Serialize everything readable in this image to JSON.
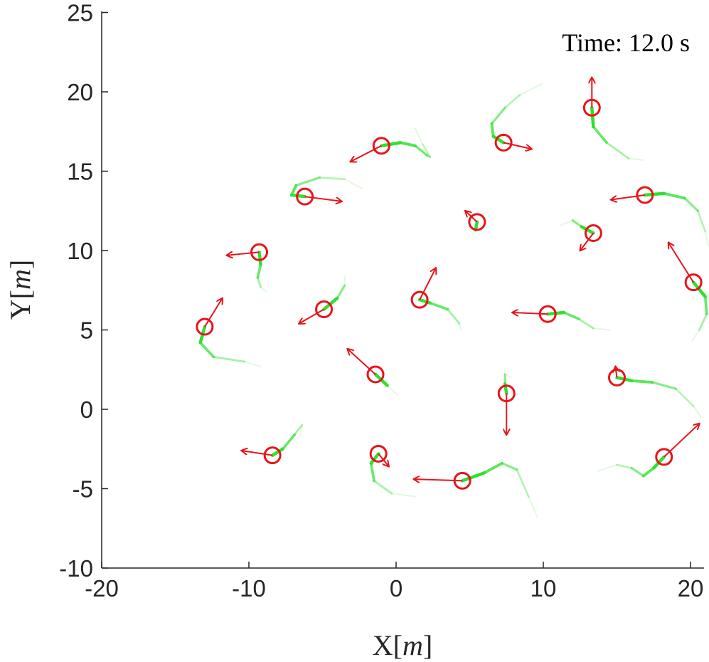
{
  "chart_data": {
    "type": "scatter",
    "title": "",
    "annotation": "Time:  12.0 s",
    "xlabel_main": "X",
    "xlabel_unit": "m",
    "ylabel_main": "Y",
    "ylabel_unit": "m",
    "xlim": [
      -20,
      21
    ],
    "ylim": [
      -10,
      25
    ],
    "xticks": [
      "-20",
      "-10",
      "0",
      "10",
      "20"
    ],
    "yticks": [
      "-10",
      "-5",
      "0",
      "5",
      "10",
      "15",
      "20",
      "25"
    ],
    "grid": false,
    "colors": {
      "agent": "#e8141a",
      "trail": "#2fe02f",
      "axis": "#262626"
    },
    "agents": [
      {
        "pos": [
          13.3,
          19.0
        ],
        "heading": [
          13.3,
          20.9
        ],
        "trail": [
          [
            13.3,
            19.0
          ],
          [
            13.4,
            17.8
          ],
          [
            14.3,
            16.8
          ],
          [
            15.8,
            15.8
          ],
          [
            16.8,
            15.7
          ]
        ]
      },
      {
        "pos": [
          7.3,
          16.8
        ],
        "heading": [
          9.2,
          16.4
        ],
        "trail": [
          [
            7.3,
            16.8
          ],
          [
            6.6,
            17.2
          ],
          [
            6.5,
            18.0
          ],
          [
            7.4,
            19.0
          ],
          [
            8.4,
            19.8
          ],
          [
            9.9,
            20.5
          ]
        ]
      },
      {
        "pos": [
          -1.0,
          16.6
        ],
        "heading": [
          -3.1,
          15.6
        ],
        "trail": [
          [
            -1.0,
            16.6
          ],
          [
            0.3,
            16.8
          ],
          [
            1.3,
            16.6
          ],
          [
            2.1,
            16.0
          ],
          [
            2.3,
            15.9
          ],
          [
            1.8,
            16.7
          ],
          [
            1.3,
            17.7
          ]
        ]
      },
      {
        "pos": [
          -6.2,
          13.4
        ],
        "heading": [
          -3.7,
          13.1
        ],
        "trail": [
          [
            -6.2,
            13.4
          ],
          [
            -7.1,
            13.5
          ],
          [
            -6.8,
            14.1
          ],
          [
            -5.2,
            14.6
          ],
          [
            -3.5,
            14.5
          ],
          [
            -2.3,
            13.9
          ]
        ]
      },
      {
        "pos": [
          16.9,
          13.5
        ],
        "heading": [
          14.6,
          13.2
        ],
        "trail": [
          [
            16.9,
            13.5
          ],
          [
            18.2,
            13.6
          ],
          [
            19.6,
            13.3
          ],
          [
            20.5,
            12.5
          ],
          [
            21.0,
            11.2
          ],
          [
            21.2,
            10.3
          ]
        ]
      },
      {
        "pos": [
          5.5,
          11.8
        ],
        "heading": [
          4.7,
          12.5
        ],
        "trail": [
          [
            5.5,
            11.8
          ],
          [
            5.4,
            11.3
          ],
          [
            5.2,
            11.0
          ]
        ]
      },
      {
        "pos": [
          13.4,
          11.1
        ],
        "heading": [
          12.5,
          10.0
        ],
        "trail": [
          [
            13.4,
            11.1
          ],
          [
            12.6,
            11.5
          ],
          [
            12.0,
            11.9
          ],
          [
            11.2,
            11.6
          ]
        ]
      },
      {
        "pos": [
          -9.3,
          9.9
        ],
        "heading": [
          -11.5,
          9.7
        ],
        "trail": [
          [
            -9.3,
            9.9
          ],
          [
            -9.2,
            9.1
          ],
          [
            -9.4,
            8.3
          ],
          [
            -9.2,
            7.7
          ],
          [
            -8.8,
            7.4
          ]
        ]
      },
      {
        "pos": [
          20.2,
          8.0
        ],
        "heading": [
          18.5,
          10.5
        ],
        "trail": [
          [
            20.2,
            8.0
          ],
          [
            21.0,
            7.1
          ],
          [
            21.1,
            6.0
          ],
          [
            20.6,
            5.0
          ],
          [
            20.1,
            4.3
          ]
        ]
      },
      {
        "pos": [
          -4.9,
          6.3
        ],
        "heading": [
          -6.6,
          5.4
        ],
        "trail": [
          [
            -4.9,
            6.3
          ],
          [
            -4.0,
            7.0
          ],
          [
            -3.5,
            7.8
          ],
          [
            -3.5,
            8.4
          ]
        ]
      },
      {
        "pos": [
          1.6,
          6.9
        ],
        "heading": [
          2.7,
          8.9
        ],
        "trail": [
          [
            1.6,
            6.9
          ],
          [
            2.3,
            6.7
          ],
          [
            3.5,
            6.3
          ],
          [
            4.3,
            5.4
          ],
          [
            4.4,
            5.0
          ]
        ]
      },
      {
        "pos": [
          10.3,
          6.0
        ],
        "heading": [
          7.9,
          6.1
        ],
        "trail": [
          [
            10.3,
            6.0
          ],
          [
            11.4,
            6.1
          ],
          [
            12.4,
            5.7
          ],
          [
            13.4,
            5.1
          ],
          [
            14.5,
            5.0
          ]
        ]
      },
      {
        "pos": [
          -13.0,
          5.2
        ],
        "heading": [
          -11.8,
          7.0
        ],
        "trail": [
          [
            -13.0,
            5.2
          ],
          [
            -13.3,
            4.2
          ],
          [
            -12.4,
            3.3
          ],
          [
            -10.3,
            3.0
          ],
          [
            -9.2,
            2.7
          ]
        ]
      },
      {
        "pos": [
          -1.4,
          2.2
        ],
        "heading": [
          -3.3,
          3.8
        ],
        "trail": [
          [
            -1.4,
            2.2
          ],
          [
            -0.6,
            1.5
          ],
          [
            0.1,
            0.9
          ]
        ]
      },
      {
        "pos": [
          15.0,
          2.0
        ],
        "heading": [
          14.9,
          2.7
        ],
        "trail": [
          [
            15.0,
            2.0
          ],
          [
            16.0,
            1.8
          ],
          [
            17.4,
            1.7
          ],
          [
            19.0,
            1.3
          ],
          [
            20.2,
            0.2
          ],
          [
            20.8,
            -0.6
          ]
        ]
      },
      {
        "pos": [
          7.5,
          1.0
        ],
        "heading": [
          7.5,
          -1.6
        ],
        "trail": [
          [
            7.5,
            1.0
          ],
          [
            7.4,
            1.6
          ],
          [
            7.4,
            2.2
          ],
          [
            7.8,
            2.0
          ]
        ]
      },
      {
        "pos": [
          -8.4,
          -2.9
        ],
        "heading": [
          -10.5,
          -2.6
        ],
        "trail": [
          [
            -8.4,
            -2.9
          ],
          [
            -7.7,
            -2.5
          ],
          [
            -6.9,
            -1.6
          ],
          [
            -6.4,
            -1.0
          ],
          [
            -6.5,
            -1.7
          ]
        ]
      },
      {
        "pos": [
          -1.2,
          -2.8
        ],
        "heading": [
          -0.5,
          -3.6
        ],
        "trail": [
          [
            -1.2,
            -2.8
          ],
          [
            -1.7,
            -3.4
          ],
          [
            -1.5,
            -4.5
          ],
          [
            -0.3,
            -5.3
          ],
          [
            1.3,
            -5.5
          ]
        ]
      },
      {
        "pos": [
          4.5,
          -4.5
        ],
        "heading": [
          1.2,
          -4.4
        ],
        "trail": [
          [
            4.5,
            -4.5
          ],
          [
            6.0,
            -4.0
          ],
          [
            7.2,
            -3.4
          ],
          [
            8.2,
            -3.8
          ],
          [
            9.0,
            -5.5
          ],
          [
            9.6,
            -6.8
          ]
        ]
      },
      {
        "pos": [
          18.2,
          -3.0
        ],
        "heading": [
          20.6,
          -0.9
        ],
        "trail": [
          [
            18.2,
            -3.0
          ],
          [
            17.5,
            -3.7
          ],
          [
            16.8,
            -4.2
          ],
          [
            16.0,
            -3.7
          ],
          [
            15.0,
            -3.5
          ],
          [
            13.7,
            -3.9
          ]
        ]
      }
    ]
  }
}
